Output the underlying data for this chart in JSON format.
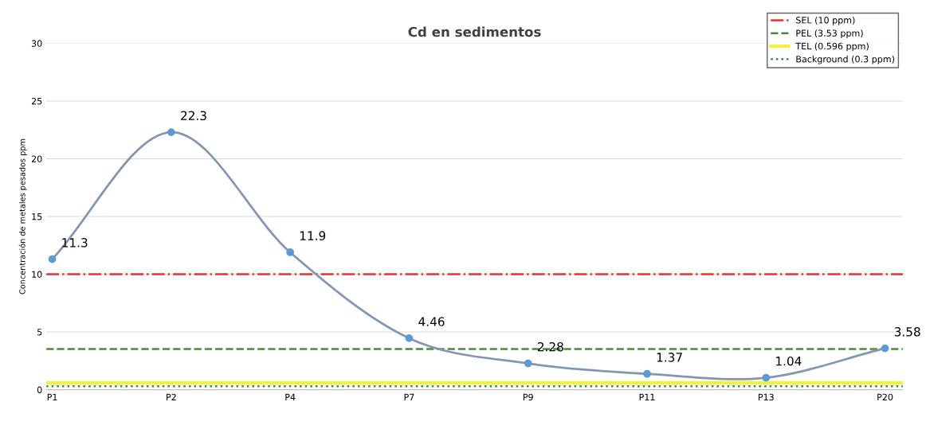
{
  "chart_data": {
    "type": "line",
    "title": "Cd en sedimentos",
    "ylabel": "Concentración de metales pesados ppm",
    "categories": [
      "P1",
      "P2",
      "P4",
      "P7",
      "P9",
      "P11",
      "P13",
      "P20"
    ],
    "series": [
      {
        "color": "#8497b0",
        "values": [
          11.3,
          22.3,
          11.9,
          4.46,
          2.28,
          1.37,
          1.04,
          3.58
        ]
      }
    ],
    "marker": "circle",
    "data_labels": true,
    "ylim": [
      0,
      30
    ],
    "yticks": [
      0,
      5,
      10,
      15,
      20,
      25,
      30
    ],
    "grid": "y",
    "legend": "top right",
    "ref_lines": [
      {
        "axis": "y",
        "value": 10,
        "label": "SEL (10 ppm)",
        "color": "#e8302a",
        "line_style": "dashdot"
      },
      {
        "axis": "y",
        "value": 3.53,
        "label": "PEL (3.53 ppm)",
        "color": "#4e8a3a",
        "line_style": "dashed"
      },
      {
        "axis": "y",
        "value": 0.596,
        "label": "TEL (0.596 ppm)",
        "color": "#f2f23a",
        "line_style": "solid"
      },
      {
        "axis": "y",
        "value": 0.3,
        "label": "Background (0.3 ppm)",
        "color": "#3a8a3a",
        "line_style": "dotted"
      }
    ]
  }
}
